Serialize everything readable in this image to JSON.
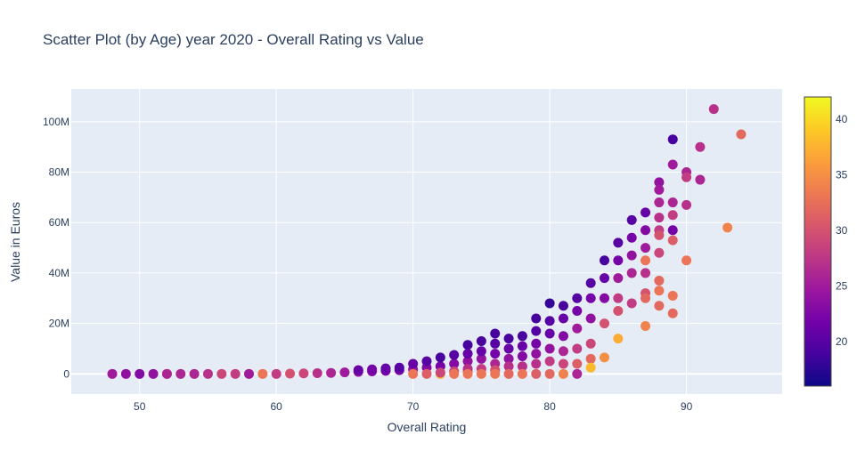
{
  "chart_data": {
    "type": "scatter",
    "title": "Scatter Plot (by Age) year 2020 - Overall Rating vs Value",
    "xlabel": "Overall Rating",
    "ylabel": "Value in Euros",
    "xlim": [
      45,
      97
    ],
    "ylim": [
      -8000000,
      113000000
    ],
    "x_ticks": [
      50,
      60,
      70,
      80,
      90
    ],
    "y_ticks": [
      0,
      20000000,
      40000000,
      60000000,
      80000000,
      100000000
    ],
    "y_tick_labels": [
      "0",
      "20M",
      "40M",
      "60M",
      "80M",
      "100M"
    ],
    "grid": true,
    "colorbar": {
      "min": 16,
      "max": 42,
      "ticks": [
        20,
        25,
        30,
        35,
        40
      ],
      "colorscale": [
        "#0d0887",
        "#46039f",
        "#7201a8",
        "#9c179e",
        "#bd3786",
        "#d8576b",
        "#ed7953",
        "#fb9f3a",
        "#fdca26",
        "#f0f921"
      ]
    },
    "points": [
      [
        48,
        0,
        25
      ],
      [
        49,
        0,
        24
      ],
      [
        50,
        0,
        23
      ],
      [
        51,
        0,
        24
      ],
      [
        52,
        0,
        33
      ],
      [
        52,
        0,
        26
      ],
      [
        53,
        0,
        26
      ],
      [
        54,
        0,
        26
      ],
      [
        55,
        0,
        27
      ],
      [
        56,
        0,
        29
      ],
      [
        57,
        0,
        28
      ],
      [
        58,
        0,
        37
      ],
      [
        58,
        0,
        25
      ],
      [
        59,
        0,
        33
      ],
      [
        60,
        0,
        28
      ],
      [
        61,
        100000,
        30
      ],
      [
        62,
        200000,
        29
      ],
      [
        63,
        300000,
        27
      ],
      [
        64,
        400000,
        26
      ],
      [
        65,
        600000,
        25
      ],
      [
        66,
        800000,
        24
      ],
      [
        66,
        1500000,
        21
      ],
      [
        67,
        1000000,
        23
      ],
      [
        67,
        1800000,
        22
      ],
      [
        68,
        1200000,
        22
      ],
      [
        68,
        2200000,
        21
      ],
      [
        69,
        1500000,
        22
      ],
      [
        69,
        2500000,
        20
      ],
      [
        70,
        1800000,
        24
      ],
      [
        70,
        4000000,
        21
      ],
      [
        70,
        0,
        33
      ],
      [
        71,
        2500000,
        23
      ],
      [
        71,
        5000000,
        20
      ],
      [
        71,
        0,
        31
      ],
      [
        72,
        3000000,
        22
      ],
      [
        72,
        6500000,
        19
      ],
      [
        72,
        0,
        37
      ],
      [
        72,
        500000,
        29
      ],
      [
        73,
        4000000,
        23
      ],
      [
        73,
        7500000,
        20
      ],
      [
        73,
        1000000,
        29
      ],
      [
        73,
        0,
        33
      ],
      [
        74,
        5000000,
        24
      ],
      [
        74,
        11500000,
        19
      ],
      [
        74,
        8000000,
        21
      ],
      [
        74,
        1000000,
        31
      ],
      [
        74,
        2000000,
        27
      ],
      [
        74,
        0,
        33
      ],
      [
        75,
        6000000,
        24
      ],
      [
        75,
        13000000,
        19
      ],
      [
        75,
        9000000,
        21
      ],
      [
        75,
        2000000,
        28
      ],
      [
        75,
        0,
        33
      ],
      [
        76,
        16000000,
        19
      ],
      [
        76,
        12000000,
        20
      ],
      [
        76,
        8000000,
        22
      ],
      [
        76,
        4000000,
        26
      ],
      [
        76,
        1500000,
        30
      ],
      [
        76,
        0,
        33
      ],
      [
        77,
        14000000,
        19
      ],
      [
        77,
        10000000,
        21
      ],
      [
        77,
        6000000,
        24
      ],
      [
        77,
        3000000,
        27
      ],
      [
        77,
        0,
        32
      ],
      [
        78,
        15000000,
        19
      ],
      [
        78,
        11000000,
        21
      ],
      [
        78,
        7000000,
        23
      ],
      [
        78,
        3000000,
        27
      ],
      [
        78,
        0,
        33
      ],
      [
        79,
        22000000,
        19
      ],
      [
        79,
        17000000,
        20
      ],
      [
        79,
        12000000,
        22
      ],
      [
        79,
        8000000,
        24
      ],
      [
        79,
        4000000,
        27
      ],
      [
        79,
        0,
        31
      ],
      [
        80,
        28000000,
        18
      ],
      [
        80,
        21000000,
        20
      ],
      [
        80,
        16000000,
        21
      ],
      [
        80,
        10000000,
        24
      ],
      [
        80,
        5000000,
        28
      ],
      [
        80,
        0,
        32
      ],
      [
        81,
        27000000,
        19
      ],
      [
        81,
        22000000,
        21
      ],
      [
        81,
        15000000,
        23
      ],
      [
        81,
        9000000,
        26
      ],
      [
        81,
        4000000,
        29
      ],
      [
        81,
        0,
        34
      ],
      [
        82,
        30000000,
        20
      ],
      [
        82,
        25000000,
        22
      ],
      [
        82,
        18000000,
        25
      ],
      [
        82,
        10000000,
        28
      ],
      [
        82,
        4000000,
        31
      ],
      [
        82,
        0,
        26
      ],
      [
        83,
        36000000,
        20
      ],
      [
        83,
        30000000,
        22
      ],
      [
        83,
        22000000,
        24
      ],
      [
        83,
        12000000,
        29
      ],
      [
        83,
        6000000,
        32
      ],
      [
        83,
        2500000,
        38
      ],
      [
        84,
        45000000,
        19
      ],
      [
        84,
        38000000,
        21
      ],
      [
        84,
        30000000,
        23
      ],
      [
        84,
        20000000,
        30
      ],
      [
        84,
        6500000,
        35
      ],
      [
        85,
        52000000,
        20
      ],
      [
        85,
        45000000,
        22
      ],
      [
        85,
        38000000,
        25
      ],
      [
        85,
        30000000,
        28
      ],
      [
        85,
        25000000,
        30
      ],
      [
        85,
        14000000,
        37
      ],
      [
        86,
        61000000,
        20
      ],
      [
        86,
        54000000,
        22
      ],
      [
        86,
        47000000,
        24
      ],
      [
        86,
        40000000,
        26
      ],
      [
        86,
        28000000,
        28
      ],
      [
        87,
        64000000,
        21
      ],
      [
        87,
        57000000,
        23
      ],
      [
        87,
        50000000,
        25
      ],
      [
        87,
        45000000,
        33
      ],
      [
        87,
        40000000,
        27
      ],
      [
        87,
        32000000,
        30
      ],
      [
        87,
        30000000,
        32
      ],
      [
        87,
        19000000,
        34
      ],
      [
        88,
        76000000,
        24
      ],
      [
        88,
        73000000,
        25
      ],
      [
        88,
        68000000,
        26
      ],
      [
        88,
        62000000,
        27
      ],
      [
        88,
        57000000,
        28
      ],
      [
        88,
        55000000,
        30
      ],
      [
        88,
        48000000,
        29
      ],
      [
        88,
        37000000,
        32
      ],
      [
        88,
        33000000,
        33
      ],
      [
        88,
        27000000,
        32
      ],
      [
        89,
        93000000,
        19
      ],
      [
        89,
        83000000,
        25
      ],
      [
        89,
        68000000,
        26
      ],
      [
        89,
        63000000,
        28
      ],
      [
        89,
        57000000,
        22
      ],
      [
        89,
        53000000,
        31
      ],
      [
        89,
        31000000,
        33
      ],
      [
        89,
        24000000,
        32
      ],
      [
        90,
        80000000,
        26
      ],
      [
        90,
        78000000,
        28
      ],
      [
        90,
        67000000,
        27
      ],
      [
        90,
        45000000,
        33
      ],
      [
        91,
        90000000,
        27
      ],
      [
        91,
        77000000,
        26
      ],
      [
        92,
        105000000,
        27
      ],
      [
        93,
        58000000,
        34
      ],
      [
        94,
        95000000,
        32
      ]
    ]
  }
}
